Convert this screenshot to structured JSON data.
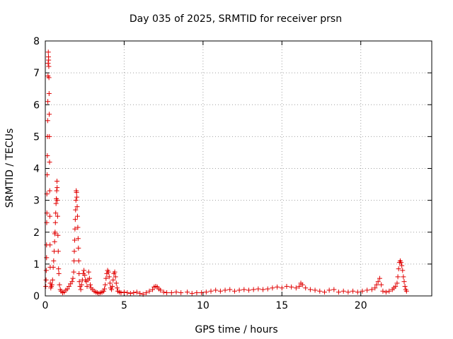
{
  "chart_data": {
    "type": "scatter",
    "title": "Day 035 of 2025, SRMTID for receiver prsn",
    "xlabel": "GPS time / hours",
    "ylabel": "SRMTID / TECUs",
    "xlim": [
      0,
      24.5
    ],
    "ylim": [
      0,
      8
    ],
    "xticks": [
      0,
      5,
      10,
      15,
      20
    ],
    "yticks": [
      0,
      1,
      2,
      3,
      4,
      5,
      6,
      7,
      8
    ],
    "grid": true,
    "marker": "plus",
    "color": "#e00000",
    "series": [
      {
        "name": "SRMTID",
        "points": [
          [
            0.03,
            0.3
          ],
          [
            0.05,
            0.5
          ],
          [
            0.06,
            0.8
          ],
          [
            0.08,
            1.2
          ],
          [
            0.08,
            1.6
          ],
          [
            0.09,
            2.3
          ],
          [
            0.1,
            2.6
          ],
          [
            0.1,
            3.2
          ],
          [
            0.12,
            3.8
          ],
          [
            0.13,
            4.4
          ],
          [
            0.14,
            5.0
          ],
          [
            0.15,
            5.5
          ],
          [
            0.16,
            6.1
          ],
          [
            0.17,
            6.9
          ],
          [
            0.18,
            7.3
          ],
          [
            0.19,
            7.65
          ],
          [
            0.2,
            7.5
          ],
          [
            0.21,
            7.4
          ],
          [
            0.22,
            7.2
          ],
          [
            0.23,
            6.85
          ],
          [
            0.24,
            6.35
          ],
          [
            0.25,
            5.7
          ],
          [
            0.26,
            5.0
          ],
          [
            0.27,
            4.2
          ],
          [
            0.28,
            3.3
          ],
          [
            0.29,
            2.5
          ],
          [
            0.3,
            1.6
          ],
          [
            0.31,
            0.9
          ],
          [
            0.32,
            0.4
          ],
          [
            0.35,
            0.25
          ],
          [
            0.38,
            0.3
          ],
          [
            0.42,
            0.35
          ],
          [
            0.46,
            0.5
          ],
          [
            0.5,
            0.9
          ],
          [
            0.53,
            1.1
          ],
          [
            0.56,
            1.4
          ],
          [
            0.59,
            1.7
          ],
          [
            0.6,
            1.95
          ],
          [
            0.62,
            2.0
          ],
          [
            0.64,
            2.3
          ],
          [
            0.66,
            2.6
          ],
          [
            0.68,
            2.9
          ],
          [
            0.7,
            3.05
          ],
          [
            0.72,
            3.3
          ],
          [
            0.74,
            3.6
          ],
          [
            0.75,
            3.4
          ],
          [
            0.76,
            3.0
          ],
          [
            0.78,
            2.5
          ],
          [
            0.8,
            1.9
          ],
          [
            0.82,
            1.4
          ],
          [
            0.84,
            0.85
          ],
          [
            0.86,
            0.7
          ],
          [
            0.9,
            0.35
          ],
          [
            0.95,
            0.2
          ],
          [
            1.0,
            0.15
          ],
          [
            1.1,
            0.1
          ],
          [
            1.2,
            0.12
          ],
          [
            1.3,
            0.18
          ],
          [
            1.4,
            0.22
          ],
          [
            1.5,
            0.3
          ],
          [
            1.6,
            0.38
          ],
          [
            1.7,
            0.45
          ],
          [
            1.75,
            0.55
          ],
          [
            1.8,
            0.75
          ],
          [
            1.82,
            1.1
          ],
          [
            1.84,
            1.4
          ],
          [
            1.86,
            1.75
          ],
          [
            1.88,
            2.1
          ],
          [
            1.9,
            2.4
          ],
          [
            1.92,
            2.7
          ],
          [
            1.94,
            3.0
          ],
          [
            1.96,
            3.3
          ],
          [
            1.98,
            3.25
          ],
          [
            2.0,
            3.1
          ],
          [
            2.02,
            2.8
          ],
          [
            2.04,
            2.5
          ],
          [
            2.06,
            2.15
          ],
          [
            2.08,
            1.8
          ],
          [
            2.1,
            1.5
          ],
          [
            2.12,
            1.1
          ],
          [
            2.14,
            0.7
          ],
          [
            2.16,
            0.45
          ],
          [
            2.2,
            0.3
          ],
          [
            2.25,
            0.2
          ],
          [
            2.3,
            0.35
          ],
          [
            2.35,
            0.5
          ],
          [
            2.4,
            0.7
          ],
          [
            2.45,
            0.8
          ],
          [
            2.5,
            0.65
          ],
          [
            2.55,
            0.5
          ],
          [
            2.6,
            0.45
          ],
          [
            2.65,
            0.3
          ],
          [
            2.7,
            0.5
          ],
          [
            2.75,
            0.75
          ],
          [
            2.8,
            0.55
          ],
          [
            2.85,
            0.35
          ],
          [
            2.9,
            0.25
          ],
          [
            3.0,
            0.2
          ],
          [
            3.1,
            0.15
          ],
          [
            3.2,
            0.12
          ],
          [
            3.3,
            0.1
          ],
          [
            3.4,
            0.08
          ],
          [
            3.5,
            0.1
          ],
          [
            3.6,
            0.12
          ],
          [
            3.7,
            0.15
          ],
          [
            3.75,
            0.22
          ],
          [
            3.8,
            0.35
          ],
          [
            3.85,
            0.55
          ],
          [
            3.9,
            0.7
          ],
          [
            3.95,
            0.8
          ],
          [
            4.0,
            0.75
          ],
          [
            4.05,
            0.6
          ],
          [
            4.1,
            0.4
          ],
          [
            4.15,
            0.25
          ],
          [
            4.2,
            0.2
          ],
          [
            4.25,
            0.3
          ],
          [
            4.3,
            0.5
          ],
          [
            4.35,
            0.7
          ],
          [
            4.4,
            0.75
          ],
          [
            4.45,
            0.6
          ],
          [
            4.5,
            0.4
          ],
          [
            4.55,
            0.25
          ],
          [
            4.6,
            0.15
          ],
          [
            4.7,
            0.12
          ],
          [
            4.8,
            0.1
          ],
          [
            5.0,
            0.12
          ],
          [
            5.2,
            0.1
          ],
          [
            5.4,
            0.08
          ],
          [
            5.6,
            0.1
          ],
          [
            5.8,
            0.12
          ],
          [
            6.0,
            0.08
          ],
          [
            6.2,
            0.05
          ],
          [
            6.4,
            0.1
          ],
          [
            6.6,
            0.15
          ],
          [
            6.8,
            0.2
          ],
          [
            6.9,
            0.28
          ],
          [
            7.0,
            0.3
          ],
          [
            7.1,
            0.28
          ],
          [
            7.2,
            0.22
          ],
          [
            7.3,
            0.18
          ],
          [
            7.5,
            0.12
          ],
          [
            7.7,
            0.1
          ],
          [
            8.0,
            0.1
          ],
          [
            8.3,
            0.12
          ],
          [
            8.6,
            0.1
          ],
          [
            9.0,
            0.12
          ],
          [
            9.3,
            0.08
          ],
          [
            9.6,
            0.1
          ],
          [
            9.9,
            0.1
          ],
          [
            10.2,
            0.12
          ],
          [
            10.5,
            0.15
          ],
          [
            10.8,
            0.18
          ],
          [
            11.1,
            0.15
          ],
          [
            11.4,
            0.18
          ],
          [
            11.7,
            0.2
          ],
          [
            12.0,
            0.15
          ],
          [
            12.3,
            0.18
          ],
          [
            12.6,
            0.2
          ],
          [
            12.9,
            0.18
          ],
          [
            13.2,
            0.2
          ],
          [
            13.5,
            0.22
          ],
          [
            13.8,
            0.2
          ],
          [
            14.1,
            0.22
          ],
          [
            14.4,
            0.25
          ],
          [
            14.7,
            0.28
          ],
          [
            15.0,
            0.25
          ],
          [
            15.3,
            0.3
          ],
          [
            15.6,
            0.28
          ],
          [
            15.9,
            0.25
          ],
          [
            16.1,
            0.3
          ],
          [
            16.2,
            0.4
          ],
          [
            16.3,
            0.35
          ],
          [
            16.5,
            0.25
          ],
          [
            16.8,
            0.2
          ],
          [
            17.1,
            0.18
          ],
          [
            17.4,
            0.15
          ],
          [
            17.7,
            0.12
          ],
          [
            18.0,
            0.18
          ],
          [
            18.3,
            0.2
          ],
          [
            18.6,
            0.12
          ],
          [
            18.9,
            0.15
          ],
          [
            19.2,
            0.12
          ],
          [
            19.5,
            0.15
          ],
          [
            19.8,
            0.12
          ],
          [
            20.1,
            0.15
          ],
          [
            20.4,
            0.18
          ],
          [
            20.7,
            0.2
          ],
          [
            20.9,
            0.25
          ],
          [
            21.0,
            0.35
          ],
          [
            21.1,
            0.45
          ],
          [
            21.2,
            0.55
          ],
          [
            21.3,
            0.35
          ],
          [
            21.4,
            0.15
          ],
          [
            21.6,
            0.12
          ],
          [
            21.8,
            0.15
          ],
          [
            22.0,
            0.2
          ],
          [
            22.1,
            0.25
          ],
          [
            22.2,
            0.3
          ],
          [
            22.3,
            0.4
          ],
          [
            22.35,
            0.6
          ],
          [
            22.4,
            0.85
          ],
          [
            22.45,
            1.05
          ],
          [
            22.5,
            1.1
          ],
          [
            22.55,
            1.05
          ],
          [
            22.6,
            0.95
          ],
          [
            22.65,
            0.8
          ],
          [
            22.7,
            0.6
          ],
          [
            22.75,
            0.45
          ],
          [
            22.8,
            0.3
          ],
          [
            22.85,
            0.2
          ],
          [
            22.9,
            0.15
          ]
        ]
      }
    ]
  }
}
